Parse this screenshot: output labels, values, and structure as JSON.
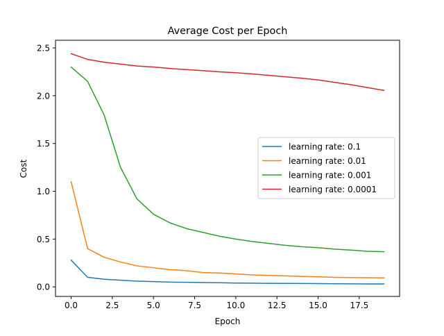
{
  "chart_data": {
    "type": "line",
    "title": "Average Cost per Epoch",
    "xlabel": "Epoch",
    "ylabel": "Cost",
    "xlim": [
      -0.95,
      19.95
    ],
    "ylim": [
      -0.1,
      2.58
    ],
    "xticks": [
      0,
      2.5,
      5,
      7.5,
      10,
      12.5,
      15,
      17.5
    ],
    "xtick_labels": [
      "0.0",
      "2.5",
      "5.0",
      "7.5",
      "10.0",
      "12.5",
      "15.0",
      "17.5"
    ],
    "yticks": [
      0,
      0.5,
      1,
      1.5,
      2,
      2.5
    ],
    "ytick_labels": [
      "0.0",
      "0.5",
      "1.0",
      "1.5",
      "2.0",
      "2.5"
    ],
    "grid": false,
    "legend_position": "center-right",
    "x": [
      0,
      1,
      2,
      3,
      4,
      5,
      6,
      7,
      8,
      9,
      10,
      11,
      12,
      13,
      14,
      15,
      16,
      17,
      18,
      19
    ],
    "series": [
      {
        "name": "learning rate: 0.1",
        "color": "#1f77b4",
        "values": [
          0.28,
          0.1,
          0.08,
          0.07,
          0.06,
          0.055,
          0.05,
          0.048,
          0.045,
          0.043,
          0.04,
          0.039,
          0.037,
          0.036,
          0.035,
          0.034,
          0.033,
          0.032,
          0.031,
          0.031
        ]
      },
      {
        "name": "learning rate: 0.01",
        "color": "#ff7f0e",
        "values": [
          1.1,
          0.4,
          0.31,
          0.26,
          0.22,
          0.2,
          0.18,
          0.17,
          0.15,
          0.145,
          0.135,
          0.125,
          0.12,
          0.115,
          0.11,
          0.105,
          0.1,
          0.098,
          0.096,
          0.094
        ]
      },
      {
        "name": "learning rate: 0.001",
        "color": "#2ca02c",
        "values": [
          2.3,
          2.15,
          1.8,
          1.25,
          0.92,
          0.76,
          0.67,
          0.61,
          0.57,
          0.53,
          0.5,
          0.475,
          0.455,
          0.435,
          0.42,
          0.41,
          0.395,
          0.385,
          0.372,
          0.368
        ]
      },
      {
        "name": "learning rate: 0.0001",
        "color": "#d62728",
        "values": [
          2.44,
          2.38,
          2.35,
          2.33,
          2.31,
          2.3,
          2.285,
          2.273,
          2.262,
          2.25,
          2.24,
          2.228,
          2.213,
          2.198,
          2.183,
          2.165,
          2.14,
          2.115,
          2.085,
          2.055
        ]
      }
    ]
  }
}
